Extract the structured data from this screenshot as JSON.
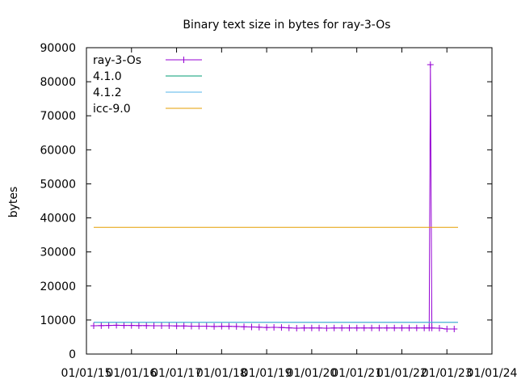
{
  "chart_data": {
    "type": "line",
    "title": "Binary text size in bytes for ray-3-Os",
    "xlabel": "",
    "ylabel": "bytes",
    "x_axis": {
      "kind": "date",
      "range": [
        "2015-01-01",
        "2024-01-01"
      ],
      "ticks": [
        "01/01/15",
        "01/01/16",
        "01/01/17",
        "01/01/18",
        "01/01/19",
        "01/01/20",
        "01/01/21",
        "01/01/22",
        "01/01/23",
        "01/01/24"
      ]
    },
    "y_axis": {
      "range": [
        0,
        90000
      ],
      "ticks": [
        "0",
        "10000",
        "20000",
        "30000",
        "40000",
        "50000",
        "60000",
        "70000",
        "80000",
        "90000"
      ]
    },
    "grid": false,
    "legend_position": "top-left",
    "series": [
      {
        "name": "ray-3-Os",
        "color": "#9400d3",
        "style": "line-points",
        "points": [
          [
            "2015-03-01",
            8300
          ],
          [
            "2015-05-01",
            8350
          ],
          [
            "2015-07-01",
            8400
          ],
          [
            "2015-09-01",
            8450
          ],
          [
            "2015-11-01",
            8400
          ],
          [
            "2016-01-01",
            8400
          ],
          [
            "2016-03-01",
            8350
          ],
          [
            "2016-05-01",
            8350
          ],
          [
            "2016-07-01",
            8300
          ],
          [
            "2016-09-01",
            8300
          ],
          [
            "2016-11-01",
            8300
          ],
          [
            "2017-01-01",
            8250
          ],
          [
            "2017-03-01",
            8250
          ],
          [
            "2017-05-01",
            8200
          ],
          [
            "2017-07-01",
            8200
          ],
          [
            "2017-09-01",
            8200
          ],
          [
            "2017-11-01",
            8100
          ],
          [
            "2018-01-01",
            8150
          ],
          [
            "2018-03-01",
            8150
          ],
          [
            "2018-05-01",
            8100
          ],
          [
            "2018-07-01",
            8000
          ],
          [
            "2018-09-01",
            7950
          ],
          [
            "2018-11-01",
            7900
          ],
          [
            "2019-01-01",
            7800
          ],
          [
            "2019-03-01",
            7850
          ],
          [
            "2019-05-01",
            7800
          ],
          [
            "2019-07-01",
            7700
          ],
          [
            "2019-09-01",
            7600
          ],
          [
            "2019-11-01",
            7650
          ],
          [
            "2020-01-01",
            7650
          ],
          [
            "2020-03-01",
            7650
          ],
          [
            "2020-05-01",
            7600
          ],
          [
            "2020-07-01",
            7650
          ],
          [
            "2020-09-01",
            7650
          ],
          [
            "2020-11-01",
            7650
          ],
          [
            "2021-01-01",
            7650
          ],
          [
            "2021-03-01",
            7650
          ],
          [
            "2021-05-01",
            7650
          ],
          [
            "2021-07-01",
            7650
          ],
          [
            "2021-09-01",
            7650
          ],
          [
            "2021-11-01",
            7650
          ],
          [
            "2022-01-01",
            7650
          ],
          [
            "2022-03-01",
            7650
          ],
          [
            "2022-05-01",
            7650
          ],
          [
            "2022-07-01",
            7650
          ],
          [
            "2022-08-10",
            7650
          ],
          [
            "2022-08-20",
            85000
          ],
          [
            "2022-09-01",
            7650
          ],
          [
            "2022-11-01",
            7600
          ],
          [
            "2023-01-01",
            7350
          ],
          [
            "2023-03-01",
            7350
          ]
        ]
      },
      {
        "name": "4.1.0",
        "color": "#009e73",
        "style": "line",
        "points": [
          [
            "2015-03-01",
            9300
          ],
          [
            "2023-04-01",
            9300
          ]
        ]
      },
      {
        "name": "4.1.2",
        "color": "#56b4e9",
        "style": "line",
        "points": [
          [
            "2015-03-01",
            9350
          ],
          [
            "2023-04-01",
            9350
          ]
        ]
      },
      {
        "name": "icc-9.0",
        "color": "#e69f00",
        "style": "line",
        "points": [
          [
            "2015-03-01",
            37200
          ],
          [
            "2023-04-01",
            37200
          ]
        ]
      }
    ]
  }
}
